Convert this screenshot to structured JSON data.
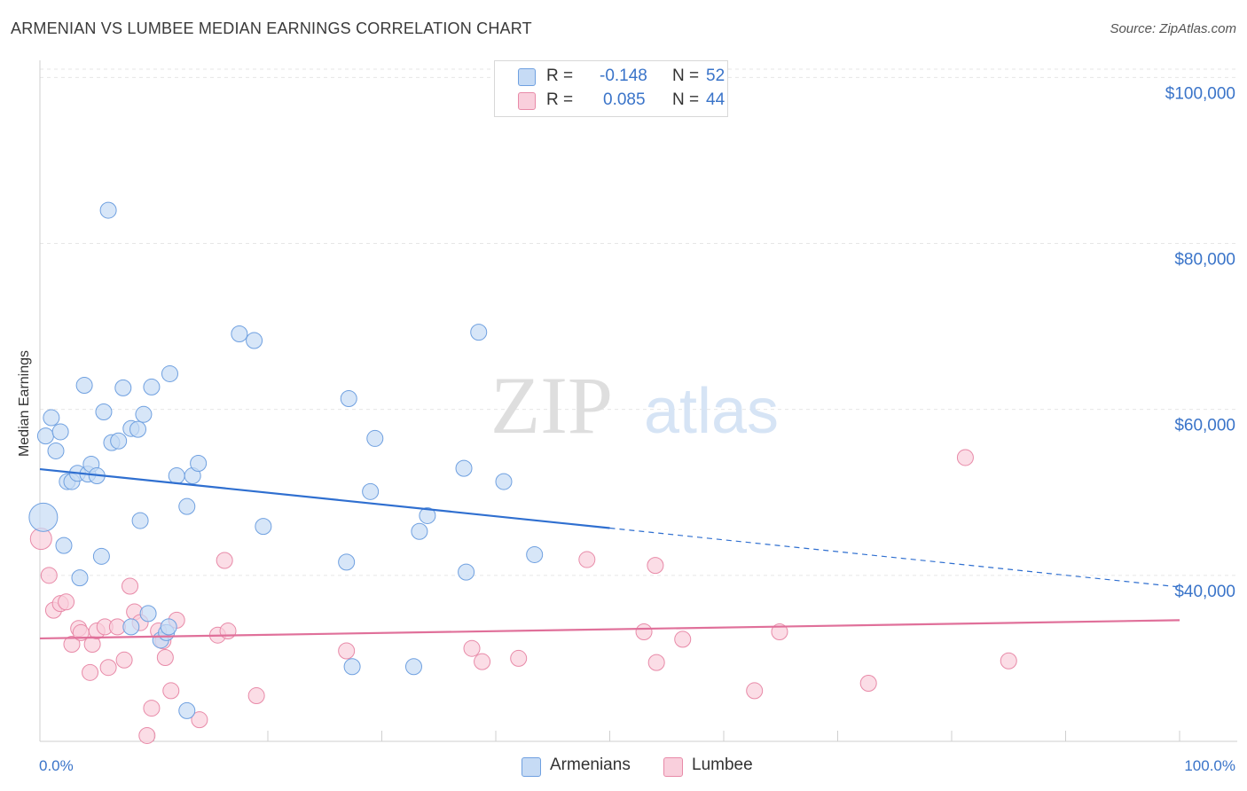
{
  "header": {
    "title": "ARMENIAN VS LUMBEE MEDIAN EARNINGS CORRELATION CHART",
    "source": "Source: ZipAtlas.com"
  },
  "watermark": {
    "zip": "ZIP",
    "atlas": "atlas"
  },
  "legend": {
    "rows": [
      {
        "label": "R = ",
        "r": "-0.148",
        "n_label": "N = ",
        "n": "52",
        "color": "#aecbf0",
        "border": "#6fa0e0"
      },
      {
        "label": "R = ",
        "r": "0.085",
        "n_label": "N = ",
        "n": "44",
        "color": "#f8c6d4",
        "border": "#e88aa8"
      }
    ]
  },
  "bottom_legend": {
    "armenians": "Armenians",
    "lumbee": "Lumbee"
  },
  "chart_data": {
    "type": "scatter",
    "title": "ARMENIAN VS LUMBEE MEDIAN EARNINGS CORRELATION CHART",
    "xlabel": "",
    "ylabel": "Median Earnings",
    "xlim": [
      0,
      100
    ],
    "ylim": [
      20000,
      101000
    ],
    "x_tick_labels": [
      "0.0%",
      "100.0%"
    ],
    "y_ticks": [
      {
        "value": 40000,
        "label": "$40,000"
      },
      {
        "value": 60000,
        "label": "$60,000"
      },
      {
        "value": 80000,
        "label": "$80,000"
      },
      {
        "value": 100000,
        "label": "$100,000"
      }
    ],
    "series": [
      {
        "name": "Armenians",
        "color": "#6fa0e0",
        "fill": "#c6dbf5",
        "trend": {
          "x0": 0,
          "y0": 52800,
          "x1": 50,
          "y1": 45700,
          "dash_to_x": 100,
          "dash_to_y": 38600,
          "color": "#2f6fd0"
        },
        "points": [
          [
            0.3,
            47000,
            16
          ],
          [
            0.5,
            56800,
            9
          ],
          [
            1.0,
            59000,
            9
          ],
          [
            1.4,
            55000,
            9
          ],
          [
            1.8,
            57300,
            9
          ],
          [
            2.1,
            43600,
            9
          ],
          [
            2.4,
            51300,
            9
          ],
          [
            2.8,
            51300,
            9
          ],
          [
            3.3,
            52300,
            9
          ],
          [
            3.5,
            39700,
            9
          ],
          [
            3.9,
            62900,
            9
          ],
          [
            4.2,
            52200,
            9
          ],
          [
            4.5,
            53400,
            9
          ],
          [
            5.0,
            52000,
            9
          ],
          [
            5.4,
            42300,
            9
          ],
          [
            5.6,
            59700,
            9
          ],
          [
            6.0,
            84000,
            9
          ],
          [
            6.3,
            56000,
            9
          ],
          [
            6.9,
            56200,
            9
          ],
          [
            7.3,
            62600,
            9
          ],
          [
            8.0,
            57700,
            9
          ],
          [
            8.6,
            57600,
            9
          ],
          [
            8.8,
            46600,
            9
          ],
          [
            9.1,
            59400,
            9
          ],
          [
            9.5,
            35400,
            9
          ],
          [
            9.8,
            62700,
            9
          ],
          [
            10.6,
            32200,
            9
          ],
          [
            11.1,
            33100,
            9
          ],
          [
            11.3,
            33800,
            9
          ],
          [
            11.4,
            64300,
            9
          ],
          [
            12.0,
            52000,
            9
          ],
          [
            12.9,
            48300,
            9
          ],
          [
            13.4,
            52000,
            9
          ],
          [
            13.9,
            53500,
            9
          ],
          [
            17.5,
            69100,
            9
          ],
          [
            18.8,
            68300,
            9
          ],
          [
            19.6,
            45900,
            9
          ],
          [
            26.9,
            41600,
            9
          ],
          [
            27.1,
            61300,
            9
          ],
          [
            27.4,
            29000,
            9
          ],
          [
            29.0,
            50100,
            9
          ],
          [
            29.4,
            56500,
            9
          ],
          [
            32.8,
            29000,
            9
          ],
          [
            33.3,
            45300,
            9
          ],
          [
            34.0,
            47200,
            9
          ],
          [
            37.2,
            52900,
            9
          ],
          [
            37.4,
            40400,
            9
          ],
          [
            38.5,
            69300,
            9
          ],
          [
            40.7,
            51300,
            9
          ],
          [
            43.4,
            42500,
            9
          ],
          [
            12.9,
            23700,
            9
          ],
          [
            8.0,
            33800,
            9
          ]
        ]
      },
      {
        "name": "Lumbee",
        "color": "#e88aa8",
        "fill": "#f9cfdc",
        "trend": {
          "x0": 0,
          "y0": 32400,
          "x1": 100,
          "y1": 34600,
          "color": "#e0709a"
        },
        "points": [
          [
            0.1,
            44400,
            12
          ],
          [
            0.8,
            40000,
            9
          ],
          [
            1.2,
            35800,
            9
          ],
          [
            1.8,
            36600,
            9
          ],
          [
            2.3,
            36800,
            9
          ],
          [
            2.8,
            31700,
            9
          ],
          [
            3.4,
            33600,
            9
          ],
          [
            3.6,
            33100,
            9
          ],
          [
            4.4,
            28300,
            9
          ],
          [
            4.6,
            31700,
            9
          ],
          [
            5.0,
            33300,
            9
          ],
          [
            5.7,
            33800,
            9
          ],
          [
            6.0,
            28900,
            9
          ],
          [
            6.8,
            33800,
            9
          ],
          [
            7.4,
            29800,
            9
          ],
          [
            7.9,
            38700,
            9
          ],
          [
            8.3,
            35600,
            9
          ],
          [
            8.8,
            34300,
            9
          ],
          [
            9.4,
            20700,
            9
          ],
          [
            9.8,
            24000,
            9
          ],
          [
            10.4,
            33300,
            9
          ],
          [
            11.0,
            30100,
            9
          ],
          [
            11.5,
            26100,
            9
          ],
          [
            12.0,
            34600,
            9
          ],
          [
            14.0,
            22600,
            9
          ],
          [
            15.6,
            32800,
            9
          ],
          [
            16.2,
            41800,
            9
          ],
          [
            16.5,
            33300,
            9
          ],
          [
            19.0,
            25500,
            9
          ],
          [
            26.9,
            30900,
            9
          ],
          [
            37.9,
            31200,
            9
          ],
          [
            38.8,
            29600,
            9
          ],
          [
            42.0,
            30000,
            9
          ],
          [
            48.0,
            41900,
            9
          ],
          [
            53.0,
            33200,
            9
          ],
          [
            54.1,
            29500,
            9
          ],
          [
            56.4,
            32300,
            9
          ],
          [
            62.7,
            26100,
            9
          ],
          [
            64.9,
            33200,
            9
          ],
          [
            72.7,
            27000,
            9
          ],
          [
            81.2,
            54200,
            9
          ],
          [
            54.0,
            41200,
            9
          ],
          [
            85.0,
            29700,
            9
          ],
          [
            10.8,
            32100,
            9
          ]
        ]
      }
    ]
  }
}
